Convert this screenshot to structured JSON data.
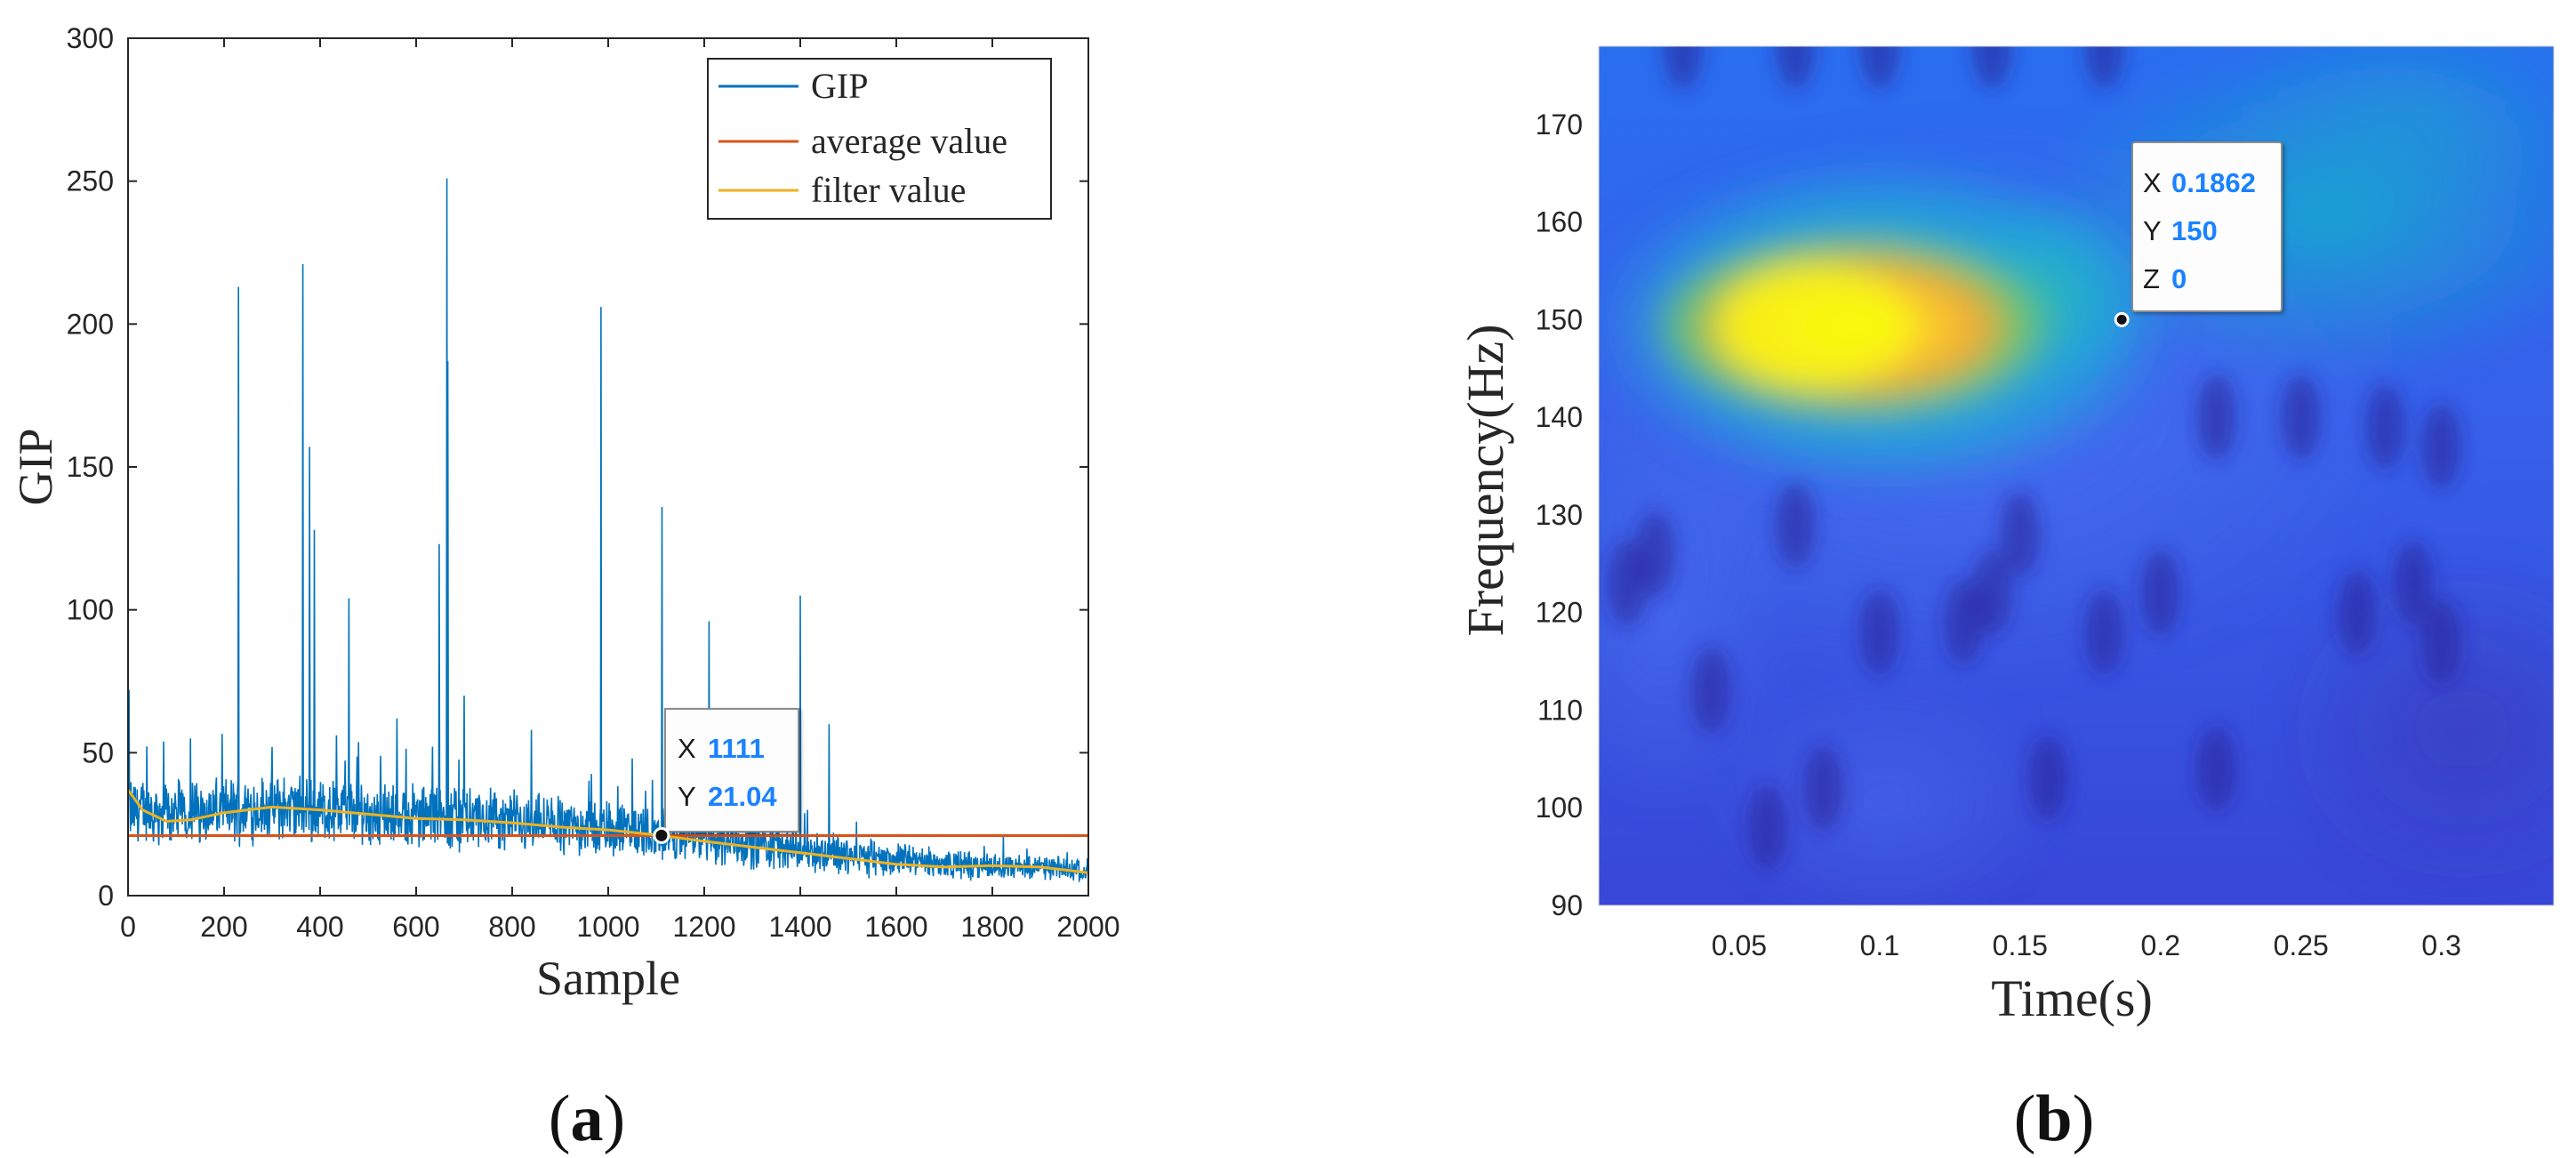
{
  "colors": {
    "gip": "#0072BD",
    "average": "#D95319",
    "filter": "#EDB120",
    "tip_value": "#1a82ff",
    "axis": "#262626"
  },
  "chart_data": [
    {
      "type": "line",
      "panel_label": "a",
      "xlabel": "Sample",
      "ylabel": "GIP",
      "xlim": [
        0,
        2000
      ],
      "ylim": [
        0,
        300
      ],
      "x_ticks": [
        0,
        200,
        400,
        600,
        800,
        1000,
        1200,
        1400,
        1600,
        1800,
        2000
      ],
      "y_ticks": [
        0,
        50,
        100,
        150,
        200,
        250,
        300
      ],
      "legend": {
        "position": "top-right",
        "entries": [
          "GIP",
          "average value",
          "filter value"
        ]
      },
      "series": [
        {
          "name": "GIP",
          "style": "noisy",
          "baseline_points": [
            [
              0,
              30
            ],
            [
              100,
              29
            ],
            [
              300,
              31
            ],
            [
              500,
              29
            ],
            [
              700,
              27
            ],
            [
              900,
              25
            ],
            [
              1100,
              22
            ],
            [
              1300,
              18
            ],
            [
              1500,
              14
            ],
            [
              1700,
              11
            ],
            [
              2000,
              9
            ]
          ],
          "noise_amplitude": [
            [
              0,
              9
            ],
            [
              400,
              9
            ],
            [
              900,
              8
            ],
            [
              1100,
              7
            ],
            [
              1400,
              6
            ],
            [
              1700,
              4
            ],
            [
              2000,
              3
            ]
          ],
          "spikes": [
            [
              2,
              72
            ],
            [
              230,
              213
            ],
            [
              364,
              221
            ],
            [
              378,
              157
            ],
            [
              388,
              128
            ],
            [
              460,
              104
            ],
            [
              648,
              123
            ],
            [
              664,
              251
            ],
            [
              666,
              187
            ],
            [
              700,
              70
            ],
            [
              985,
              206
            ],
            [
              1112,
              136
            ],
            [
              1210,
              96
            ],
            [
              1400,
              105
            ],
            [
              1460,
              60
            ],
            [
              130,
              55
            ],
            [
              560,
              62
            ],
            [
              840,
              58
            ],
            [
              300,
              52
            ],
            [
              1050,
              48
            ],
            [
              1300,
              45
            ]
          ]
        },
        {
          "name": "average value",
          "values": [
            [
              0,
              21
            ],
            [
              2000,
              21
            ]
          ]
        },
        {
          "name": "filter value",
          "values": [
            [
              0,
              37
            ],
            [
              30,
              30
            ],
            [
              80,
              26
            ],
            [
              130,
              26.5
            ],
            [
              200,
              29
            ],
            [
              300,
              31
            ],
            [
              400,
              30
            ],
            [
              500,
              28.5
            ],
            [
              600,
              27
            ],
            [
              700,
              26.5
            ],
            [
              800,
              25.5
            ],
            [
              900,
              24
            ],
            [
              1000,
              23
            ],
            [
              1111,
              21.04
            ],
            [
              1200,
              19
            ],
            [
              1300,
              17
            ],
            [
              1400,
              15
            ],
            [
              1500,
              13
            ],
            [
              1600,
              11
            ],
            [
              1700,
              10
            ],
            [
              1800,
              10.5
            ],
            [
              1900,
              10
            ],
            [
              2000,
              8
            ]
          ]
        }
      ],
      "datatip": {
        "x_label": "X",
        "x_value": "1111",
        "y_label": "Y",
        "y_value": "21.04",
        "x": 1111,
        "y": 21.04
      }
    },
    {
      "type": "heatmap",
      "panel_label": "b",
      "xlabel": "Time(s)",
      "ylabel": "Frequency(Hz)",
      "xlim": [
        0,
        0.34
      ],
      "ylim": [
        90,
        178
      ],
      "x_ticks": [
        0.05,
        0.1,
        0.15,
        0.2,
        0.25,
        0.3
      ],
      "y_ticks": [
        90,
        100,
        110,
        120,
        130,
        140,
        150,
        160,
        170
      ],
      "hotspot": {
        "time_range": [
          0.01,
          0.17
        ],
        "center_frequency": 150,
        "peak_time": 0.08
      },
      "datatip": {
        "x_label": "X",
        "x_value": "0.1862",
        "y_label": "Y",
        "y_value": "150",
        "z_label": "Z",
        "z_value": "0",
        "x": 0.1862,
        "y": 150
      }
    }
  ]
}
